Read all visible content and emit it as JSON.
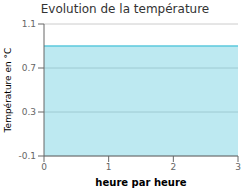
{
  "chart_data": {
    "type": "area",
    "title": "Evolution de la température",
    "x_label": "heure par heure",
    "y_label": "Température en °C",
    "x": [
      0,
      3
    ],
    "values": [
      0.9,
      0.9
    ],
    "color": "#5bc8dc",
    "xlim": [
      0,
      3
    ],
    "ylim": [
      -0.1,
      1.1
    ],
    "xticks": [
      0,
      1,
      2,
      3
    ],
    "yticks": [
      -0.1,
      0.3,
      0.7,
      1.1
    ],
    "grid": true
  }
}
